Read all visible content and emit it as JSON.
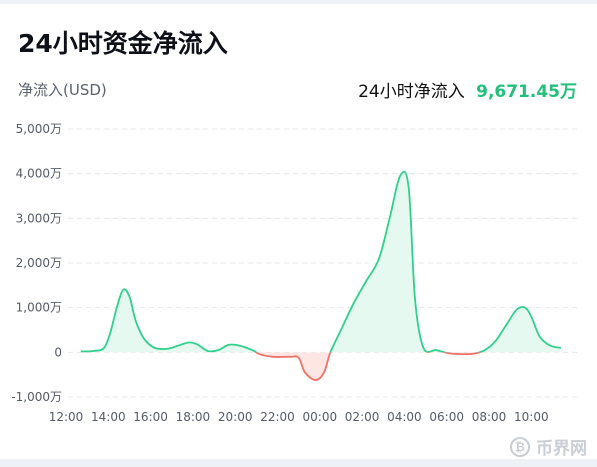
{
  "header": {
    "title": "24小时资金净流入",
    "unit_label": "净流入(USD)",
    "summary_label": "24小时净流入",
    "summary_value": "9,671.45万"
  },
  "watermark": {
    "text": "币界网",
    "icon": "bitcoin-coin-icon"
  },
  "colors": {
    "positive": "#2fd08c",
    "positive_fill": "#e6f9f0",
    "negative": "#f07167",
    "negative_fill": "#fde6e4",
    "grid": "#e6e8ec",
    "tick": "#555c66"
  },
  "chart_data": {
    "type": "area",
    "title": "",
    "xlabel": "",
    "ylabel": "净流入(USD)",
    "grid": true,
    "legend": "none",
    "ylim": [
      -1000,
      5000
    ],
    "y_ticks": [
      {
        "value": 5000,
        "label": "5,000万"
      },
      {
        "value": 4000,
        "label": "4,000万"
      },
      {
        "value": 3000,
        "label": "3,000万"
      },
      {
        "value": 2000,
        "label": "2,000万"
      },
      {
        "value": 1000,
        "label": "1,000万"
      },
      {
        "value": 0,
        "label": "0"
      },
      {
        "value": -1000,
        "label": "-1,000万"
      }
    ],
    "xlim": [
      12,
      36
    ],
    "x_ticks": [
      {
        "value": 12,
        "label": "12:00"
      },
      {
        "value": 14,
        "label": "14:00"
      },
      {
        "value": 16,
        "label": "16:00"
      },
      {
        "value": 18,
        "label": "18:00"
      },
      {
        "value": 20,
        "label": "20:00"
      },
      {
        "value": 22,
        "label": "22:00"
      },
      {
        "value": 24,
        "label": "00:00"
      },
      {
        "value": 26,
        "label": "02:00"
      },
      {
        "value": 28,
        "label": "04:00"
      },
      {
        "value": 30,
        "label": "06:00"
      },
      {
        "value": 32,
        "label": "08:00"
      },
      {
        "value": 34,
        "label": "10:00"
      }
    ],
    "x_unit": "hours since 12:00 of previous day",
    "series": [
      {
        "values": [
          [
            12.7,
            20
          ],
          [
            13.3,
            30
          ],
          [
            13.8,
            100
          ],
          [
            14.1,
            450
          ],
          [
            14.4,
            1000
          ],
          [
            14.7,
            1400
          ],
          [
            15.0,
            1250
          ],
          [
            15.3,
            700
          ],
          [
            15.7,
            300
          ],
          [
            16.2,
            100
          ],
          [
            16.8,
            80
          ],
          [
            17.3,
            150
          ],
          [
            17.8,
            220
          ],
          [
            18.2,
            180
          ],
          [
            18.7,
            30
          ],
          [
            19.2,
            50
          ],
          [
            19.7,
            170
          ],
          [
            20.2,
            150
          ],
          [
            20.8,
            50
          ],
          [
            21.2,
            -50
          ],
          [
            21.8,
            -100
          ],
          [
            22.6,
            -100
          ],
          [
            23.0,
            -120
          ],
          [
            23.3,
            -450
          ],
          [
            23.8,
            -620
          ],
          [
            24.2,
            -450
          ],
          [
            24.5,
            0
          ],
          [
            25.0,
            500
          ],
          [
            25.6,
            1100
          ],
          [
            26.2,
            1600
          ],
          [
            26.8,
            2100
          ],
          [
            27.3,
            3000
          ],
          [
            27.8,
            3950
          ],
          [
            28.2,
            3700
          ],
          [
            28.5,
            1200
          ],
          [
            28.9,
            100
          ],
          [
            29.5,
            50
          ],
          [
            30.1,
            -20
          ],
          [
            30.8,
            -40
          ],
          [
            31.3,
            -30
          ],
          [
            31.8,
            50
          ],
          [
            32.3,
            250
          ],
          [
            32.8,
            600
          ],
          [
            33.3,
            950
          ],
          [
            33.7,
            1000
          ],
          [
            34.0,
            800
          ],
          [
            34.4,
            350
          ],
          [
            34.9,
            150
          ],
          [
            35.4,
            100
          ]
        ]
      }
    ]
  }
}
